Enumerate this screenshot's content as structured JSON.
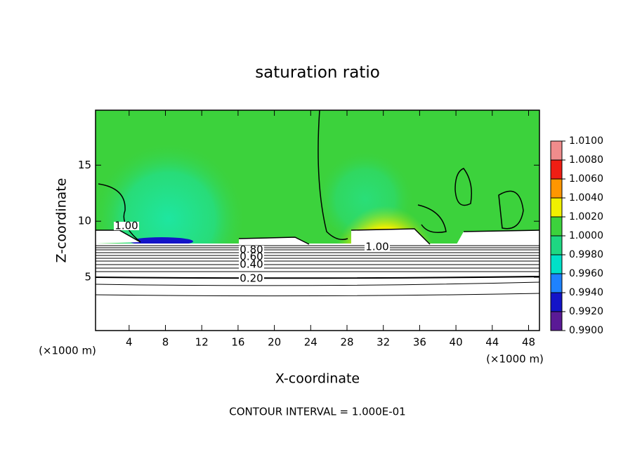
{
  "chart_data": {
    "type": "contour",
    "title": "saturation ratio",
    "x_label": "X-coordinate",
    "y_label": "Z-coordinate",
    "x_unit": "(×1000 m)",
    "xlim": [
      0.3,
      49.2
    ],
    "ylim": [
      0.25,
      19.9
    ],
    "xticks": [
      4,
      8,
      12,
      16,
      20,
      24,
      28,
      32,
      36,
      40,
      44,
      48
    ],
    "yticks": [
      5,
      10,
      15
    ],
    "contour_labels": [
      "1.00",
      "1.00",
      "0.80",
      "0.60",
      "0.40",
      "0.20"
    ],
    "annotation": "CONTOUR INTERVAL = 1.000E-01",
    "colorbar": {
      "levels": [
        {
          "value": 0.99,
          "label": "0.9900"
        },
        {
          "value": 0.992,
          "label": "0.9920"
        },
        {
          "value": 0.994,
          "label": "0.9940"
        },
        {
          "value": 0.996,
          "label": "0.9960"
        },
        {
          "value": 0.998,
          "label": "0.9980"
        },
        {
          "value": 1.0,
          "label": "1.0000"
        },
        {
          "value": 1.002,
          "label": "1.0020"
        },
        {
          "value": 1.004,
          "label": "1.0040"
        },
        {
          "value": 1.006,
          "label": "1.0060"
        },
        {
          "value": 1.008,
          "label": "1.0080"
        },
        {
          "value": 1.01,
          "label": "1.0100"
        }
      ],
      "colors": [
        "#5a1a96",
        "#1414c8",
        "#1e82ff",
        "#00e0c8",
        "#1ed782",
        "#3cd23c",
        "#f0f000",
        "#ff9600",
        "#f01e14",
        "#f08c8c"
      ]
    }
  }
}
